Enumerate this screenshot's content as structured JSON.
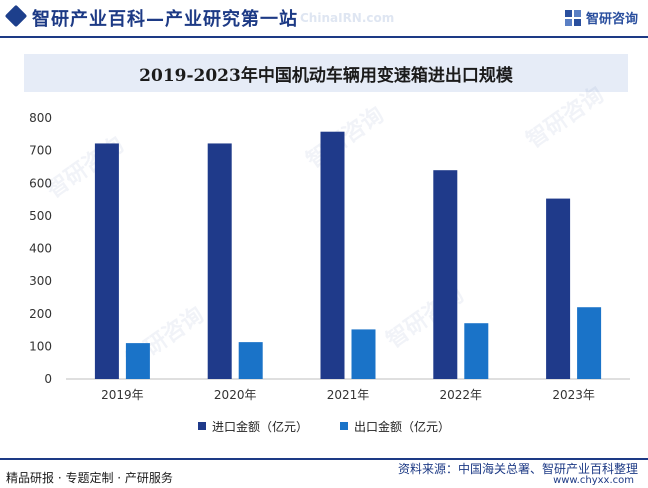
{
  "header": {
    "site_title": "智研产业百科—产业研究第一站",
    "faint_text": "ChinaIRN.com",
    "brand_name": "智研咨询"
  },
  "colors": {
    "import": "#1f3a8a",
    "export": "#1a73c8",
    "header_blue": "#1d3a85",
    "title_band": "#e6ecf7"
  },
  "chart_data": {
    "type": "bar",
    "title": "2019-2023年中国机动车辆用变速箱进出口规模",
    "categories": [
      "2019年",
      "2020年",
      "2021年",
      "2022年",
      "2023年"
    ],
    "series": [
      {
        "name": "进口金额（亿元）",
        "values": [
          722,
          722,
          758,
          640,
          553
        ]
      },
      {
        "name": "出口金额（亿元）",
        "values": [
          110,
          113,
          152,
          171,
          220
        ]
      }
    ],
    "ylim": [
      0,
      800
    ],
    "yticks": [
      0,
      100,
      200,
      300,
      400,
      500,
      600,
      700,
      800
    ],
    "grid": false,
    "legend": "bottom-center",
    "xlabel": "",
    "ylabel": ""
  },
  "footer": {
    "left_text": "精品研报 · 专题定制 · 产研服务",
    "source_text": "资料来源：中国海关总署、智研产业百科整理",
    "url_text": "www.chyxx.com"
  },
  "watermark_text": "智研咨询"
}
